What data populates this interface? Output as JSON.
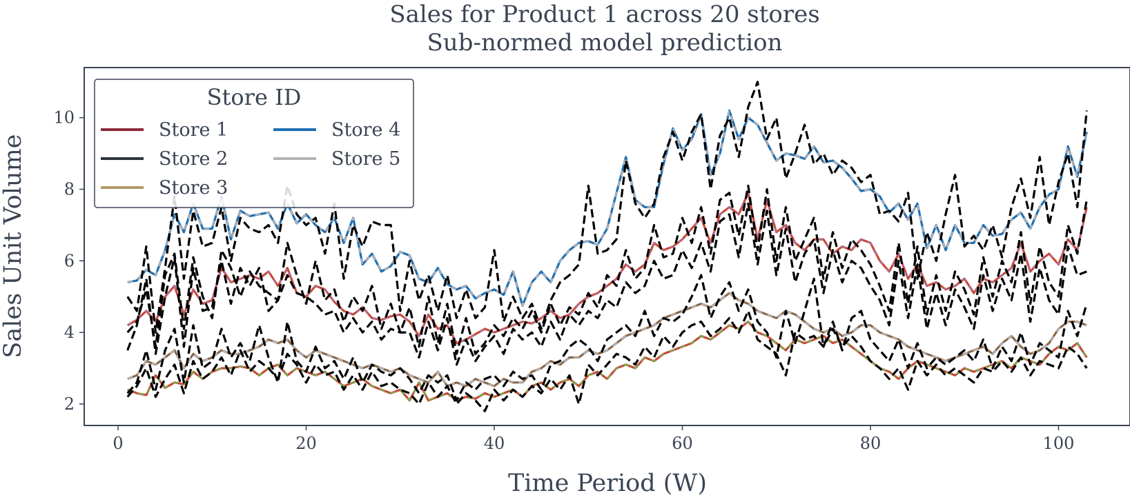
{
  "chart_data": {
    "type": "line",
    "title": "Sales for Product 1 across 20 stores",
    "subtitle": "Sub-normed model prediction",
    "xlabel": "Time Period (W)",
    "ylabel": "Sales Unit Volume",
    "xlim": [
      -3.6,
      107.6
    ],
    "ylim": [
      1.4,
      11.4
    ],
    "xticks": [
      0,
      20,
      40,
      60,
      80,
      100
    ],
    "yticks": [
      2,
      4,
      6,
      8,
      10
    ],
    "grid": false,
    "legend": {
      "title": "Store ID",
      "placement": "top-left",
      "columns": 2,
      "entries": [
        {
          "label": "Store 1",
          "color": "#8c2a3a"
        },
        {
          "label": "Store 2",
          "color": "#2e3440"
        },
        {
          "label": "Store 3",
          "color": "#b59a6a"
        },
        {
          "label": "Store 4",
          "color": "#1f6fb0"
        },
        {
          "label": "Store 5",
          "color": "#b7b2b6"
        }
      ]
    },
    "x": [
      1,
      2,
      3,
      4,
      5,
      6,
      7,
      8,
      9,
      10,
      11,
      12,
      13,
      14,
      15,
      16,
      17,
      18,
      19,
      20,
      21,
      22,
      23,
      24,
      25,
      26,
      27,
      28,
      29,
      30,
      31,
      32,
      33,
      34,
      35,
      36,
      37,
      38,
      39,
      40,
      41,
      42,
      43,
      44,
      45,
      46,
      47,
      48,
      49,
      50,
      51,
      52,
      53,
      54,
      55,
      56,
      57,
      58,
      59,
      60,
      61,
      62,
      63,
      64,
      65,
      66,
      67,
      68,
      69,
      70,
      71,
      72,
      73,
      74,
      75,
      76,
      77,
      78,
      79,
      80,
      81,
      82,
      83,
      84,
      85,
      86,
      87,
      88,
      89,
      90,
      91,
      92,
      93,
      94,
      95,
      96,
      97,
      98,
      99,
      100,
      101,
      102,
      103
    ],
    "series": [
      {
        "role": "prediction",
        "style": "solid",
        "color": "#1f6fb0",
        "overlay": "#b7b2b6",
        "values": [
          5.4,
          5.45,
          5.75,
          5.6,
          6.3,
          7.3,
          6.8,
          7.6,
          6.9,
          6.9,
          7.8,
          6.6,
          7.4,
          7.25,
          7.3,
          7.35,
          6.9,
          7.6,
          7.05,
          7.3,
          7.0,
          6.8,
          7.2,
          6.5,
          7.2,
          5.9,
          6.2,
          5.7,
          5.85,
          6.25,
          6.15,
          5.5,
          5.4,
          5.8,
          5.35,
          5.2,
          5.3,
          4.95,
          5.1,
          5.2,
          5.05,
          5.7,
          4.75,
          5.4,
          5.7,
          5.4,
          6.0,
          6.3,
          6.5,
          6.55,
          6.45,
          6.9,
          7.9,
          8.9,
          7.7,
          7.5,
          7.5,
          8.7,
          9.7,
          9.1,
          9.4,
          10.1,
          8.4,
          9.0,
          10.2,
          9.4,
          10.0,
          9.8,
          9.3,
          8.8,
          9.0,
          8.95,
          8.85,
          9.2,
          8.75,
          8.8,
          8.6,
          8.3,
          7.95,
          8.0,
          7.8,
          7.35,
          7.6,
          7.15,
          7.6,
          6.35,
          7.0,
          6.3,
          7.0,
          6.5,
          6.5,
          7.0,
          6.7,
          6.75,
          7.15,
          7.35,
          6.9,
          7.5,
          7.85,
          8.0,
          9.2,
          8.35,
          9.6
        ]
      },
      {
        "role": "prediction",
        "style": "solid",
        "color": "#c84a3a",
        "overlay": "#b56a8a",
        "values": [
          4.2,
          4.35,
          4.6,
          4.3,
          5.0,
          5.3,
          4.5,
          5.2,
          4.8,
          4.9,
          5.8,
          5.4,
          5.5,
          5.6,
          5.5,
          5.7,
          5.3,
          5.8,
          5.1,
          5.0,
          5.3,
          5.2,
          4.85,
          4.6,
          4.5,
          4.7,
          4.4,
          4.35,
          4.45,
          4.5,
          4.3,
          3.9,
          4.5,
          4.1,
          4.2,
          3.7,
          3.8,
          3.95,
          4.1,
          4.0,
          4.1,
          4.2,
          4.3,
          4.25,
          4.4,
          4.6,
          4.4,
          4.5,
          4.8,
          5.0,
          5.1,
          5.3,
          5.5,
          5.9,
          5.7,
          5.9,
          6.5,
          6.3,
          6.4,
          6.6,
          6.9,
          7.2,
          6.5,
          7.3,
          7.5,
          7.3,
          7.9,
          6.6,
          7.7,
          6.8,
          7.0,
          6.5,
          6.3,
          6.6,
          6.6,
          6.2,
          6.4,
          6.3,
          6.6,
          6.5,
          6.0,
          5.7,
          6.2,
          5.5,
          5.9,
          5.3,
          5.4,
          5.2,
          5.3,
          5.5,
          5.1,
          5.5,
          5.4,
          5.6,
          5.8,
          6.5,
          5.7,
          6.0,
          6.2,
          5.9,
          6.6,
          6.3,
          7.5
        ]
      },
      {
        "role": "prediction",
        "style": "solid",
        "color": "#8a6a4a",
        "overlay": "#b7b2b6",
        "values": [
          2.7,
          2.8,
          3.2,
          3.1,
          3.3,
          3.5,
          3.0,
          3.4,
          3.2,
          3.3,
          3.5,
          3.4,
          3.4,
          3.5,
          3.6,
          3.8,
          3.7,
          3.8,
          3.5,
          3.3,
          3.5,
          3.4,
          3.3,
          3.2,
          3.1,
          3.0,
          3.1,
          3.0,
          2.9,
          3.0,
          2.8,
          2.7,
          2.6,
          2.9,
          2.5,
          2.6,
          2.5,
          2.7,
          2.6,
          2.5,
          2.7,
          2.6,
          2.6,
          2.9,
          3.0,
          3.2,
          3.1,
          3.3,
          3.3,
          3.5,
          3.4,
          3.5,
          3.7,
          3.9,
          4.0,
          4.1,
          4.2,
          4.4,
          4.5,
          4.6,
          4.7,
          4.8,
          4.7,
          4.9,
          5.1,
          4.9,
          4.8,
          4.6,
          4.5,
          4.4,
          4.6,
          4.5,
          4.3,
          4.1,
          4.0,
          4.1,
          3.9,
          4.0,
          4.2,
          4.2,
          4.0,
          3.9,
          3.8,
          3.6,
          3.5,
          3.4,
          3.3,
          3.2,
          3.3,
          3.4,
          3.5,
          3.6,
          3.4,
          3.7,
          3.9,
          3.6,
          3.4,
          3.5,
          3.7,
          4.1,
          4.3,
          4.3,
          4.2
        ]
      },
      {
        "role": "prediction",
        "style": "solid",
        "color": "#c84a3a",
        "overlay": "#7fa84a",
        "values": [
          2.4,
          2.3,
          2.25,
          2.8,
          2.45,
          2.6,
          2.55,
          2.9,
          2.7,
          2.9,
          3.0,
          3.0,
          3.05,
          3.0,
          2.8,
          3.0,
          3.1,
          2.8,
          3.0,
          2.9,
          2.8,
          2.9,
          2.7,
          2.5,
          2.6,
          2.7,
          2.5,
          2.4,
          2.3,
          2.4,
          2.1,
          2.6,
          2.1,
          2.2,
          2.3,
          2.1,
          2.2,
          2.15,
          2.3,
          2.2,
          2.3,
          2.4,
          2.2,
          2.5,
          2.6,
          2.4,
          2.6,
          2.7,
          2.5,
          2.8,
          2.9,
          2.7,
          3.0,
          3.1,
          3.0,
          3.3,
          3.2,
          3.4,
          3.5,
          3.6,
          3.7,
          3.9,
          3.8,
          4.0,
          4.2,
          4.1,
          4.3,
          4.0,
          3.9,
          3.7,
          3.5,
          3.8,
          3.7,
          3.8,
          3.9,
          3.7,
          3.8,
          3.6,
          3.4,
          3.2,
          3.0,
          2.9,
          2.7,
          3.0,
          3.2,
          3.1,
          3.0,
          2.9,
          2.8,
          3.0,
          2.9,
          3.0,
          3.1,
          3.2,
          3.0,
          3.3,
          3.2,
          3.1,
          3.4,
          3.6,
          3.5,
          3.7,
          3.3
        ]
      },
      {
        "role": "actual",
        "style": "dashed",
        "color": "#000000",
        "values": [
          5.0,
          4.6,
          6.4,
          4.0,
          5.8,
          7.8,
          5.5,
          7.4,
          6.4,
          6.5,
          7.5,
          6.0,
          7.2,
          6.9,
          6.8,
          7.0,
          6.5,
          8.1,
          7.3,
          7.0,
          7.2,
          6.2,
          7.6,
          5.5,
          7.0,
          6.4,
          7.1,
          7.0,
          7.0,
          4.6,
          6.0,
          4.9,
          5.6,
          4.6,
          5.6,
          4.4,
          5.2,
          4.4,
          4.7,
          6.3,
          4.3,
          5.0,
          4.4,
          4.8,
          4.1,
          4.9,
          5.4,
          5.6,
          5.9,
          8.1,
          6.2,
          6.3,
          6.6,
          8.8,
          7.6,
          7.2,
          7.6,
          8.9,
          9.6,
          8.8,
          9.6,
          10.1,
          8.0,
          9.5,
          10.0,
          8.9,
          10.3,
          11.0,
          9.4,
          10.0,
          8.3,
          9.0,
          9.8,
          8.7,
          9.0,
          8.4,
          8.8,
          8.6,
          8.2,
          8.4,
          7.3,
          7.4,
          7.1,
          7.9,
          5.5,
          6.8,
          6.0,
          7.3,
          8.4,
          6.4,
          6.7,
          6.3,
          7.0,
          6.1,
          7.5,
          8.3,
          7.2,
          8.9,
          7.0,
          8.2,
          9.0,
          7.5,
          10.2
        ]
      },
      {
        "role": "actual",
        "style": "dashed",
        "color": "#000000",
        "values": [
          4.0,
          4.3,
          5.2,
          3.6,
          5.6,
          6.2,
          4.1,
          6.1,
          5.0,
          4.4,
          6.3,
          5.8,
          5.0,
          5.7,
          5.3,
          5.1,
          4.9,
          6.5,
          5.6,
          4.8,
          6.0,
          4.9,
          5.2,
          4.3,
          5.0,
          4.6,
          5.3,
          4.1,
          4.8,
          4.0,
          4.7,
          3.6,
          5.0,
          3.7,
          4.8,
          3.4,
          4.4,
          3.4,
          3.7,
          4.2,
          3.9,
          4.4,
          4.1,
          4.6,
          4.0,
          4.8,
          4.2,
          4.7,
          4.5,
          5.1,
          4.7,
          5.6,
          5.3,
          6.3,
          5.5,
          5.8,
          7.0,
          6.1,
          6.2,
          7.2,
          6.5,
          7.5,
          6.2,
          7.7,
          7.9,
          6.7,
          8.1,
          6.3,
          8.0,
          6.0,
          7.5,
          6.0,
          6.6,
          7.2,
          5.5,
          6.8,
          5.8,
          6.6,
          6.3,
          5.9,
          5.3,
          4.6,
          6.5,
          4.8,
          6.4,
          4.5,
          5.6,
          4.6,
          5.7,
          5.2,
          4.5,
          6.1,
          5.0,
          6.0,
          5.4,
          6.8,
          4.8,
          6.4,
          5.4,
          5.0,
          7.0,
          6.2,
          7.7
        ]
      },
      {
        "role": "actual",
        "style": "dashed",
        "color": "#000000",
        "values": [
          3.5,
          4.2,
          5.5,
          3.4,
          5.0,
          6.1,
          3.6,
          5.8,
          4.6,
          4.7,
          6.0,
          4.8,
          5.8,
          5.3,
          5.8,
          4.6,
          4.9,
          5.6,
          5.1,
          5.0,
          4.8,
          4.5,
          4.6,
          4.0,
          4.4,
          4.0,
          4.3,
          3.8,
          4.1,
          4.0,
          4.0,
          3.3,
          4.3,
          3.5,
          4.4,
          3.1,
          3.8,
          3.2,
          3.6,
          3.9,
          3.4,
          4.1,
          3.8,
          4.0,
          3.6,
          4.3,
          3.8,
          4.5,
          4.2,
          4.6,
          4.4,
          4.9,
          4.7,
          5.4,
          5.1,
          5.3,
          6.0,
          5.5,
          5.6,
          6.3,
          5.8,
          6.5,
          5.7,
          7.1,
          7.3,
          6.1,
          7.6,
          5.9,
          7.4,
          5.6,
          6.9,
          5.4,
          6.2,
          6.6,
          5.1,
          6.3,
          5.4,
          6.0,
          5.8,
          5.3,
          4.9,
          4.2,
          6.0,
          4.4,
          5.9,
          4.1,
          5.1,
          4.2,
          5.2,
          4.7,
          4.1,
          5.6,
          4.6,
          5.5,
          4.9,
          6.2,
          4.3,
          5.8,
          4.9,
          4.5,
          6.4,
          5.6,
          5.7
        ]
      },
      {
        "role": "actual",
        "style": "dashed",
        "color": "#000000",
        "values": [
          2.3,
          2.6,
          3.5,
          2.4,
          3.5,
          4.1,
          2.6,
          4.2,
          3.0,
          3.2,
          4.1,
          3.3,
          3.7,
          3.2,
          4.2,
          3.3,
          2.6,
          4.3,
          3.2,
          2.9,
          3.6,
          3.0,
          3.2,
          2.7,
          3.3,
          2.6,
          3.1,
          2.9,
          2.8,
          3.0,
          2.7,
          2.3,
          2.8,
          2.6,
          2.8,
          2.1,
          2.6,
          2.4,
          2.7,
          2.8,
          2.5,
          2.9,
          2.7,
          2.8,
          2.4,
          3.1,
          3.2,
          3.6,
          3.8,
          3.6,
          3.2,
          3.8,
          4.0,
          4.2,
          3.9,
          4.6,
          3.9,
          4.4,
          4.3,
          4.5,
          5.0,
          5.6,
          4.4,
          5.0,
          5.4,
          4.6,
          5.2,
          4.3,
          4.0,
          3.3,
          4.6,
          3.7,
          4.6,
          5.5,
          3.6,
          4.3,
          3.5,
          4.4,
          4.6,
          3.8,
          3.5,
          3.2,
          3.8,
          3.0,
          3.7,
          3.0,
          3.3,
          3.1,
          3.3,
          3.5,
          3.2,
          3.8,
          3.0,
          3.6,
          3.2,
          4.0,
          3.1,
          3.7,
          3.5,
          3.3,
          4.6,
          3.9,
          4.8
        ]
      },
      {
        "role": "actual",
        "style": "dashed",
        "color": "#000000",
        "values": [
          2.2,
          2.5,
          3.0,
          2.2,
          2.7,
          3.1,
          2.3,
          3.2,
          2.7,
          2.9,
          3.3,
          2.8,
          3.5,
          2.9,
          3.2,
          3.0,
          2.7,
          3.4,
          3.1,
          2.6,
          3.1,
          2.8,
          2.9,
          2.4,
          2.8,
          2.4,
          2.9,
          2.5,
          2.6,
          2.4,
          2.3,
          2.0,
          2.6,
          2.2,
          2.5,
          2.0,
          2.3,
          2.1,
          1.8,
          2.4,
          2.1,
          2.4,
          2.2,
          2.5,
          2.3,
          2.7,
          2.4,
          2.8,
          2.0,
          3.1,
          2.8,
          3.1,
          3.4,
          3.3,
          3.1,
          3.6,
          3.3,
          3.9,
          3.6,
          4.0,
          4.2,
          4.3,
          3.9,
          4.1,
          4.4,
          4.0,
          4.6,
          3.8,
          3.6,
          3.4,
          2.8,
          4.0,
          3.8,
          3.9,
          3.6,
          4.1,
          3.6,
          3.9,
          3.6,
          3.2,
          3.0,
          2.7,
          3.0,
          2.4,
          3.2,
          2.8,
          3.1,
          2.8,
          3.0,
          2.8,
          2.6,
          3.0,
          2.9,
          3.2,
          2.9,
          3.3,
          2.8,
          3.2,
          3.1,
          3.0,
          3.6,
          3.4,
          3.0
        ]
      }
    ]
  }
}
